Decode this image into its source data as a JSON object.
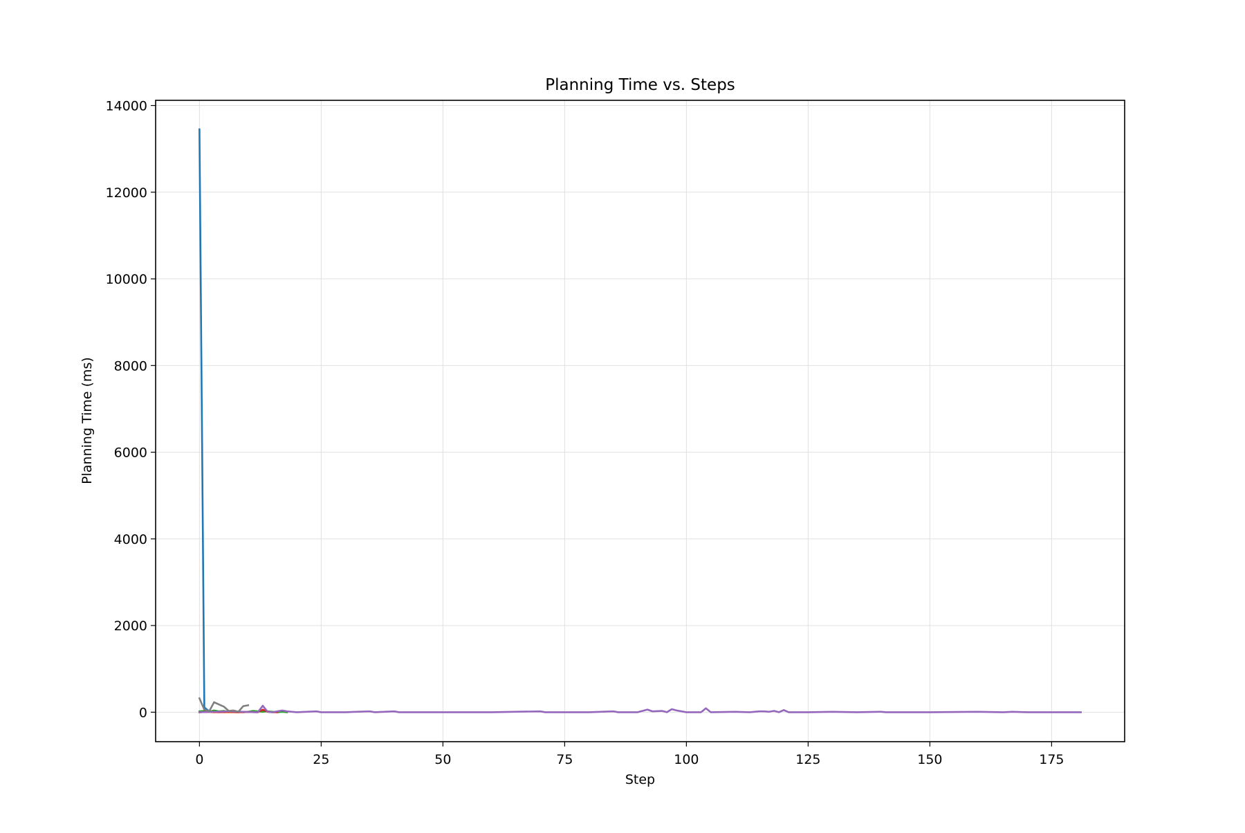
{
  "chart_data": {
    "type": "line",
    "title": "Planning Time vs. Steps",
    "xlabel": "Step",
    "ylabel": "Planning Time (ms)",
    "xlim": [
      -9,
      190
    ],
    "ylim": [
      -680,
      14120
    ],
    "xticks": [
      0,
      25,
      50,
      75,
      100,
      125,
      150,
      175
    ],
    "yticks": [
      0,
      2000,
      4000,
      6000,
      8000,
      10000,
      12000,
      14000
    ],
    "grid": true,
    "legend": "none",
    "series": [
      {
        "color": "#1f77b4",
        "points": [
          [
            0,
            13450
          ],
          [
            1,
            110
          ],
          [
            2,
            20
          ],
          [
            3,
            15
          ],
          [
            4,
            10
          ],
          [
            5,
            5
          ],
          [
            6,
            5
          ],
          [
            7,
            5
          ],
          [
            8,
            5
          ],
          [
            9,
            5
          ],
          [
            10,
            5
          ]
        ]
      },
      {
        "color": "#ff7f0e",
        "points": [
          [
            0,
            0
          ],
          [
            1,
            10
          ],
          [
            2,
            5
          ],
          [
            3,
            0
          ],
          [
            4,
            5
          ],
          [
            5,
            0
          ],
          [
            6,
            0
          ],
          [
            7,
            0
          ],
          [
            8,
            0
          ]
        ]
      },
      {
        "color": "#2ca02c",
        "points": [
          [
            0,
            20
          ],
          [
            1,
            30
          ],
          [
            2,
            10
          ],
          [
            3,
            40
          ],
          [
            4,
            20
          ],
          [
            5,
            30
          ],
          [
            6,
            10
          ],
          [
            7,
            20
          ],
          [
            8,
            10
          ],
          [
            9,
            0
          ],
          [
            10,
            10
          ],
          [
            11,
            30
          ],
          [
            12,
            20
          ],
          [
            13,
            10
          ],
          [
            14,
            20
          ],
          [
            15,
            10
          ],
          [
            16,
            0
          ],
          [
            17,
            10
          ],
          [
            18,
            0
          ]
        ]
      },
      {
        "color": "#d62728",
        "points": [
          [
            0,
            0
          ],
          [
            2,
            10
          ],
          [
            4,
            0
          ],
          [
            6,
            10
          ],
          [
            8,
            0
          ],
          [
            10,
            5
          ],
          [
            12,
            0
          ],
          [
            13,
            60
          ],
          [
            14,
            10
          ],
          [
            15,
            0
          ],
          [
            16,
            0
          ]
        ]
      },
      {
        "color": "#9467bd",
        "points": [
          [
            0,
            0
          ],
          [
            3,
            10
          ],
          [
            6,
            20
          ],
          [
            9,
            10
          ],
          [
            12,
            0
          ],
          [
            13,
            150
          ],
          [
            14,
            10
          ],
          [
            15,
            0
          ],
          [
            17,
            40
          ],
          [
            18,
            20
          ],
          [
            20,
            0
          ],
          [
            24,
            20
          ],
          [
            25,
            0
          ],
          [
            30,
            0
          ],
          [
            35,
            20
          ],
          [
            36,
            0
          ],
          [
            40,
            20
          ],
          [
            41,
            0
          ],
          [
            50,
            0
          ],
          [
            60,
            0
          ],
          [
            70,
            20
          ],
          [
            71,
            0
          ],
          [
            80,
            0
          ],
          [
            85,
            20
          ],
          [
            86,
            0
          ],
          [
            90,
            0
          ],
          [
            92,
            60
          ],
          [
            93,
            20
          ],
          [
            95,
            30
          ],
          [
            96,
            0
          ],
          [
            97,
            70
          ],
          [
            98,
            40
          ],
          [
            100,
            0
          ],
          [
            103,
            0
          ],
          [
            104,
            90
          ],
          [
            105,
            0
          ],
          [
            110,
            10
          ],
          [
            113,
            0
          ],
          [
            115,
            20
          ],
          [
            116,
            20
          ],
          [
            117,
            10
          ],
          [
            118,
            30
          ],
          [
            119,
            0
          ],
          [
            120,
            50
          ],
          [
            121,
            0
          ],
          [
            125,
            0
          ],
          [
            130,
            10
          ],
          [
            135,
            0
          ],
          [
            140,
            10
          ],
          [
            141,
            0
          ],
          [
            150,
            0
          ],
          [
            160,
            10
          ],
          [
            165,
            0
          ],
          [
            167,
            10
          ],
          [
            170,
            0
          ],
          [
            175,
            0
          ],
          [
            181,
            0
          ]
        ]
      },
      {
        "color": "#7f7f7f",
        "points": [
          [
            0,
            320
          ],
          [
            1,
            60
          ],
          [
            2,
            20
          ],
          [
            3,
            230
          ],
          [
            4,
            180
          ],
          [
            5,
            130
          ],
          [
            6,
            30
          ],
          [
            7,
            40
          ],
          [
            8,
            10
          ],
          [
            9,
            140
          ],
          [
            10,
            160
          ]
        ]
      }
    ]
  }
}
